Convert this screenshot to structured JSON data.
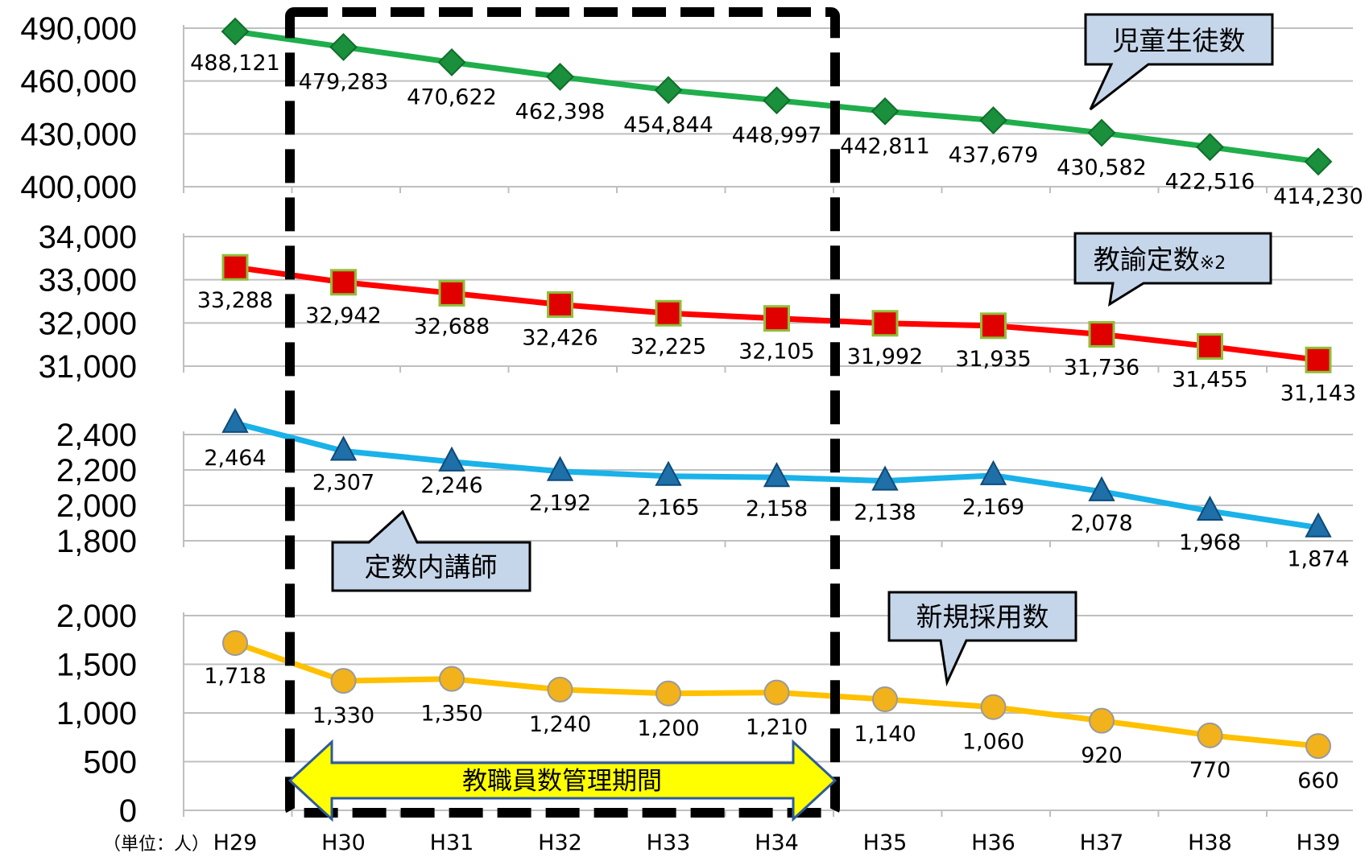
{
  "unit_label": "（単位：人）",
  "callouts": {
    "students": "児童生徒数",
    "teachers": "教諭定数",
    "teachers_note": "※2",
    "lecturers": "定数内講師",
    "hires": "新規採用数"
  },
  "period_label": "教職員数管理期間",
  "chart_data": [
    {
      "type": "line",
      "categories": [
        "H29",
        "H30",
        "H31",
        "H32",
        "H33",
        "H34",
        "H35",
        "H36",
        "H37",
        "H38",
        "H39"
      ],
      "series": [
        {
          "name": "児童生徒数",
          "values": [
            488121,
            479283,
            470622,
            462398,
            454844,
            448997,
            442811,
            437679,
            430582,
            422516,
            414230
          ],
          "color": "#1fae4b"
        }
      ],
      "ylim": [
        400000,
        490000
      ],
      "yticks": [
        400000,
        430000,
        460000,
        490000
      ],
      "ytick_labels": [
        "400,000",
        "430,000",
        "460,000",
        "490,000"
      ],
      "labels": [
        "488,121",
        "479,283",
        "470,622",
        "462,398",
        "454,844",
        "448,997",
        "442,811",
        "437,679",
        "430,582",
        "422,516",
        "414,230"
      ],
      "marker": "diamond"
    },
    {
      "type": "line",
      "categories": [
        "H29",
        "H30",
        "H31",
        "H32",
        "H33",
        "H34",
        "H35",
        "H36",
        "H37",
        "H38",
        "H39"
      ],
      "series": [
        {
          "name": "教諭定数",
          "values": [
            33288,
            32942,
            32688,
            32426,
            32225,
            32105,
            31992,
            31935,
            31736,
            31455,
            31143
          ],
          "color": "#ff0000"
        }
      ],
      "ylim": [
        31000,
        34000
      ],
      "yticks": [
        31000,
        32000,
        33000,
        34000
      ],
      "ytick_labels": [
        "31,000",
        "32,000",
        "33,000",
        "34,000"
      ],
      "labels": [
        "33,288",
        "32,942",
        "32,688",
        "32,426",
        "32,225",
        "32,105",
        "31,992",
        "31,935",
        "31,736",
        "31,455",
        "31,143"
      ],
      "marker": "square"
    },
    {
      "type": "line",
      "categories": [
        "H29",
        "H30",
        "H31",
        "H32",
        "H33",
        "H34",
        "H35",
        "H36",
        "H37",
        "H38",
        "H39"
      ],
      "series": [
        {
          "name": "定数内講師",
          "values": [
            2464,
            2307,
            2246,
            2192,
            2165,
            2158,
            2138,
            2169,
            2078,
            1968,
            1874
          ],
          "color": "#1ab2e8"
        }
      ],
      "ylim": [
        1800,
        2400
      ],
      "yticks": [
        1800,
        2000,
        2200,
        2400
      ],
      "ytick_labels": [
        "1,800",
        "2,000",
        "2,200",
        "2,400"
      ],
      "labels": [
        "2,464",
        "2,307",
        "2,246",
        "2,192",
        "2,165",
        "2,158",
        "2,138",
        "2,169",
        "2,078",
        "1,968",
        "1,874"
      ],
      "marker": "triangle"
    },
    {
      "type": "line",
      "categories": [
        "H29",
        "H30",
        "H31",
        "H32",
        "H33",
        "H34",
        "H35",
        "H36",
        "H37",
        "H38",
        "H39"
      ],
      "series": [
        {
          "name": "新規採用数",
          "values": [
            1718,
            1330,
            1350,
            1240,
            1200,
            1210,
            1140,
            1060,
            920,
            770,
            660
          ],
          "color": "#ffc000"
        }
      ],
      "ylim": [
        0,
        2000
      ],
      "yticks": [
        0,
        500,
        1000,
        1500,
        2000
      ],
      "ytick_labels": [
        "0",
        "500",
        "1,000",
        "1,500",
        "2,000"
      ],
      "labels": [
        "1,718",
        "1,330",
        "1,350",
        "1,240",
        "1,200",
        "1,210",
        "1,140",
        "1,060",
        "920",
        "770",
        "660"
      ],
      "marker": "circle"
    }
  ],
  "x_tick_labels": [
    "H29",
    "H30",
    "H31",
    "H32",
    "H33",
    "H34",
    "H35",
    "H36",
    "H37",
    "H38",
    "H39"
  ]
}
